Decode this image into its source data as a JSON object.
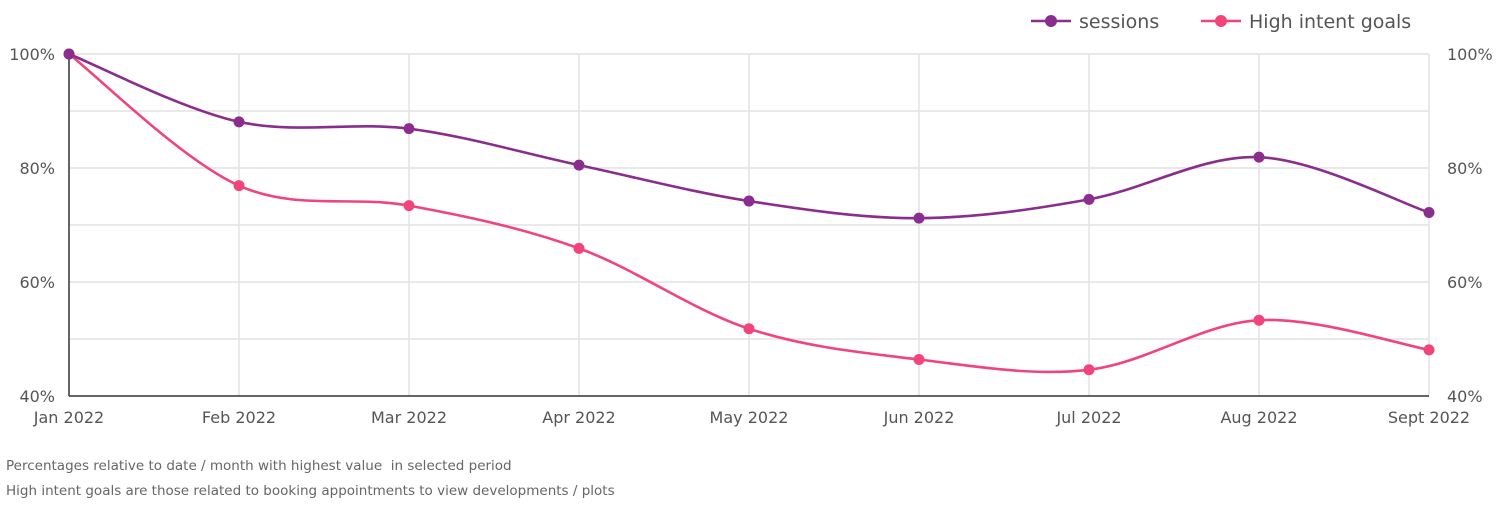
{
  "chart_data": {
    "type": "line",
    "categories": [
      "Jan 2022",
      "Feb 2022",
      "Mar 2022",
      "Apr 2022",
      "May 2022",
      "Jun 2022",
      "Jul 2022",
      "Aug 2022",
      "Sept 2022"
    ],
    "series": [
      {
        "name": "sessions",
        "color": "#8a2d8e",
        "values": [
          100,
          88.1,
          86.9,
          80.5,
          74.2,
          71.2,
          74.5,
          81.9,
          72.2
        ]
      },
      {
        "name": "High intent goals",
        "color": "#f0447a",
        "values": [
          100,
          76.9,
          73.4,
          65.9,
          51.8,
          46.4,
          44.6,
          53.3,
          48.1
        ]
      }
    ],
    "ylim": [
      40,
      100
    ],
    "y_ticks": [
      "40%",
      "60%",
      "80%",
      "100%"
    ],
    "y_tick_values": [
      40,
      60,
      80,
      100
    ],
    "secondary_y_ticks": [
      "40%",
      "60%",
      "80%",
      "100%"
    ],
    "grid": true,
    "legend_position": "top-right",
    "title": "",
    "xlabel": "",
    "ylabel": ""
  },
  "notes": [
    "Percentages relative to date / month with highest value  in selected period",
    "High intent goals are those related to booking appointments to view developments / plots"
  ]
}
